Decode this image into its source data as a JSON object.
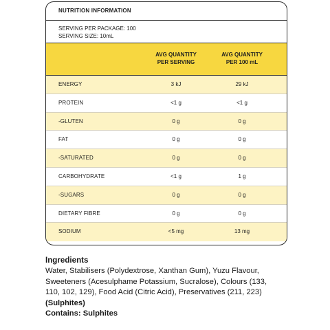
{
  "panel": {
    "title": "NUTRITION INFORMATION",
    "servings_per_package": "SERVING PER PACKAGE: 100",
    "serving_size": "SERVING SIZE: 10mL"
  },
  "table": {
    "headers": [
      "AVG QUANTITY\nPER SERVING",
      "AVG QUANTITY\nPER 100 mL"
    ],
    "rows": [
      {
        "name": "ENERGY",
        "per_serving": "3 kJ",
        "per_100ml": "29 kJ"
      },
      {
        "name": "PROTEIN",
        "per_serving": "<1 g",
        "per_100ml": "<1 g"
      },
      {
        "name": "-GLUTEN",
        "per_serving": "0 g",
        "per_100ml": "0 g"
      },
      {
        "name": "FAT",
        "per_serving": "0 g",
        "per_100ml": "0 g"
      },
      {
        "name": "-SATURATED",
        "per_serving": "0 g",
        "per_100ml": "0 g"
      },
      {
        "name": "CARBOHYDRATE",
        "per_serving": "<1 g",
        "per_100ml": "1 g"
      },
      {
        "name": "-SUGARS",
        "per_serving": "0 g",
        "per_100ml": "0 g"
      },
      {
        "name": "DIETARY FIBRE",
        "per_serving": "0 g",
        "per_100ml": "0 g"
      },
      {
        "name": "SODIUM",
        "per_serving": "<5 mg",
        "per_100ml": "13 mg"
      }
    ]
  },
  "ingredients": {
    "heading": "Ingredients",
    "text": "Water, Stabilisers (Polydextrose, Xanthan Gum), Yuzu Flavour, Sweeteners (Acesulphame Potassium, Sucralose), Colours (133, 110, 102, 129), Food Acid (Citric Acid), Preservatives (211, 223)",
    "allergen_bold": "(Sulphites)",
    "contains": "Contains: Sulphites"
  },
  "colors": {
    "header_yellow": "#f7d740",
    "row_shade": "#fdf3c4",
    "border": "#2a2a2a"
  }
}
